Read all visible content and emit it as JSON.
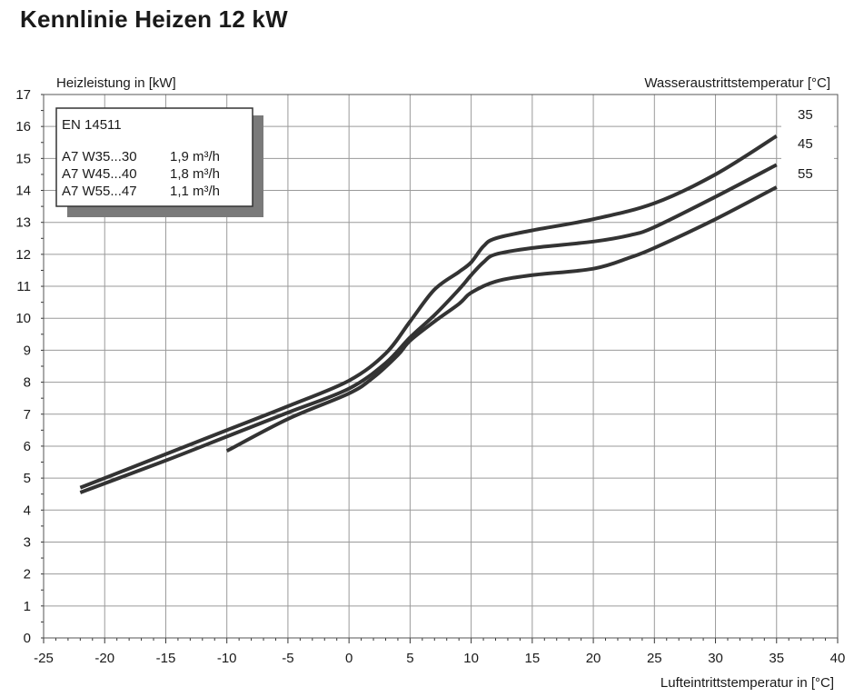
{
  "title": "Kennlinie Heizen 12 kW",
  "chart_data": {
    "type": "line",
    "ylabel": "Heizleistung in [kW]",
    "xlabel": "Lufteintrittstemperatur in [°C]",
    "series_label_title": "Wasseraustrittstemperatur [°C]",
    "xlim": [
      -25,
      40
    ],
    "ylim": [
      0,
      17
    ],
    "x_ticks": [
      -25,
      -20,
      -15,
      -10,
      -5,
      0,
      5,
      10,
      15,
      20,
      25,
      30,
      35,
      40
    ],
    "y_ticks": [
      0,
      1,
      2,
      3,
      4,
      5,
      6,
      7,
      8,
      9,
      10,
      11,
      12,
      13,
      14,
      15,
      16,
      17
    ],
    "grid": true,
    "legend_box": {
      "heading": "EN 14511",
      "rows": [
        {
          "point": "A7 W35...30",
          "flow": "1,9 m³/h"
        },
        {
          "point": "A7 W45...40",
          "flow": "1,8 m³/h"
        },
        {
          "point": "A7 W55...47",
          "flow": "1,1 m³/h"
        }
      ]
    },
    "series": [
      {
        "name": "35",
        "x": [
          -22,
          -15,
          -10,
          -5,
          0,
          3,
          5,
          7,
          9,
          10,
          11,
          12,
          15,
          20,
          25,
          30,
          35
        ],
        "y": [
          4.7,
          5.75,
          6.5,
          7.25,
          8.05,
          8.9,
          9.9,
          10.9,
          11.45,
          11.75,
          12.25,
          12.5,
          12.75,
          13.1,
          13.6,
          14.5,
          15.7
        ]
      },
      {
        "name": "45",
        "x": [
          -22,
          -15,
          -10,
          -5,
          0,
          3,
          5,
          7,
          9,
          10,
          11,
          12,
          15,
          20,
          23,
          25,
          30,
          35
        ],
        "y": [
          4.55,
          5.55,
          6.3,
          7.05,
          7.8,
          8.6,
          9.4,
          10.1,
          10.9,
          11.35,
          11.75,
          12.0,
          12.2,
          12.4,
          12.6,
          12.85,
          13.8,
          14.8
        ]
      },
      {
        "name": "55",
        "x": [
          -10,
          -5,
          0,
          2,
          4,
          5,
          7,
          9,
          10,
          12,
          15,
          20,
          23,
          25,
          30,
          35
        ],
        "y": [
          5.85,
          6.85,
          7.65,
          8.15,
          8.85,
          9.3,
          9.9,
          10.45,
          10.8,
          11.15,
          11.35,
          11.55,
          11.9,
          12.2,
          13.1,
          14.1
        ]
      }
    ],
    "line_color": "#333333",
    "grid_color": "#9a9a9a",
    "shadow_color": "#7a7a7a"
  }
}
